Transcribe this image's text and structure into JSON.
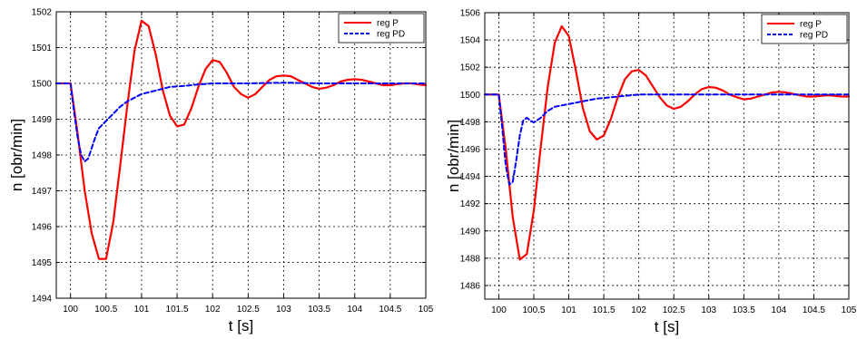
{
  "chart_data": [
    {
      "type": "line",
      "title": "",
      "xlabel": "t [s]",
      "ylabel": "n [obr/min]",
      "xlim": [
        99.8,
        105
      ],
      "ylim": [
        1494,
        1502
      ],
      "xticks": [
        100,
        100.5,
        101,
        101.5,
        102,
        102.5,
        103,
        103.5,
        104,
        104.5,
        105
      ],
      "xtick_labels": [
        "100",
        "100.5",
        "101",
        "101.5",
        "102",
        "102.5",
        "103",
        "103.5",
        "104",
        "104.5",
        "105"
      ],
      "yticks": [
        1494,
        1495,
        1496,
        1497,
        1498,
        1499,
        1500,
        1501,
        1502
      ],
      "ytick_labels": [
        "1494",
        "1495",
        "1496",
        "1497",
        "1498",
        "1499",
        "1500",
        "1501",
        "1502"
      ],
      "grid": true,
      "legend_position": "top-right",
      "series": [
        {
          "name": "reg P",
          "color": "#ff0000",
          "style": "solid",
          "x": [
            99.8,
            100.0,
            100.1,
            100.2,
            100.3,
            100.4,
            100.5,
            100.6,
            100.7,
            100.8,
            100.9,
            101.0,
            101.1,
            101.2,
            101.3,
            101.4,
            101.5,
            101.6,
            101.7,
            101.8,
            101.9,
            102.0,
            102.1,
            102.2,
            102.3,
            102.4,
            102.5,
            102.6,
            102.7,
            102.8,
            102.9,
            103.0,
            103.1,
            103.2,
            103.3,
            103.4,
            103.5,
            103.6,
            103.7,
            103.8,
            103.9,
            104.0,
            104.1,
            104.2,
            104.3,
            104.4,
            104.5,
            104.6,
            104.7,
            104.8,
            104.9,
            105.0
          ],
          "y": [
            1500,
            1500,
            1498.6,
            1497.0,
            1495.8,
            1495.1,
            1495.1,
            1496.1,
            1497.7,
            1499.4,
            1500.9,
            1501.75,
            1501.6,
            1500.8,
            1499.8,
            1499.1,
            1498.8,
            1498.85,
            1499.3,
            1499.9,
            1500.4,
            1500.65,
            1500.6,
            1500.3,
            1499.9,
            1499.7,
            1499.6,
            1499.7,
            1499.9,
            1500.1,
            1500.2,
            1500.22,
            1500.2,
            1500.1,
            1500.0,
            1499.9,
            1499.85,
            1499.88,
            1499.95,
            1500.05,
            1500.1,
            1500.12,
            1500.1,
            1500.05,
            1500.0,
            1499.95,
            1499.95,
            1499.98,
            1500.0,
            1500.0,
            1499.97,
            1499.95
          ]
        },
        {
          "name": "reg PD",
          "color": "#0000ff",
          "style": "dashed",
          "x": [
            99.8,
            100.0,
            100.05,
            100.1,
            100.15,
            100.2,
            100.25,
            100.3,
            100.35,
            100.4,
            100.45,
            100.5,
            100.6,
            100.7,
            100.8,
            100.9,
            101.0,
            101.2,
            101.4,
            101.6,
            101.8,
            102.0,
            102.2,
            102.5,
            103.0,
            103.5,
            104.0,
            104.5,
            105.0
          ],
          "y": [
            1500,
            1500,
            1499.2,
            1498.5,
            1498.0,
            1497.82,
            1497.9,
            1498.2,
            1498.5,
            1498.75,
            1498.85,
            1498.95,
            1499.15,
            1499.35,
            1499.5,
            1499.6,
            1499.7,
            1499.8,
            1499.9,
            1499.93,
            1499.97,
            1500.0,
            1500.0,
            1500.0,
            1500.02,
            1500.0,
            1500.0,
            1500.0,
            1500.0
          ]
        }
      ]
    },
    {
      "type": "line",
      "title": "",
      "xlabel": "t [s]",
      "ylabel": "n [obr/min]",
      "xlim": [
        99.8,
        105
      ],
      "ylim": [
        1485,
        1506
      ],
      "xticks": [
        100,
        100.5,
        101,
        101.5,
        102,
        102.5,
        103,
        103.5,
        104,
        104.5,
        105
      ],
      "xtick_labels": [
        "100",
        "100.5",
        "101",
        "101.5",
        "102",
        "102.5",
        "103",
        "103.5",
        "104",
        "104.5",
        "105"
      ],
      "yticks": [
        1486,
        1488,
        1490,
        1492,
        1494,
        1496,
        1498,
        1500,
        1502,
        1504,
        1506
      ],
      "ytick_labels": [
        "1486",
        "1488",
        "1490",
        "1492",
        "1494",
        "1496",
        "1498",
        "1500",
        "1502",
        "1504",
        "1506"
      ],
      "grid": true,
      "legend_position": "top-right",
      "series": [
        {
          "name": "reg P",
          "color": "#ff0000",
          "style": "solid",
          "x": [
            99.8,
            100.0,
            100.1,
            100.2,
            100.3,
            100.4,
            100.5,
            100.6,
            100.7,
            100.8,
            100.9,
            101.0,
            101.1,
            101.2,
            101.3,
            101.4,
            101.5,
            101.6,
            101.7,
            101.8,
            101.9,
            102.0,
            102.1,
            102.2,
            102.3,
            102.4,
            102.5,
            102.6,
            102.7,
            102.8,
            102.9,
            103.0,
            103.1,
            103.2,
            103.3,
            103.4,
            103.5,
            103.6,
            103.7,
            103.8,
            103.9,
            104.0,
            104.1,
            104.2,
            104.3,
            104.4,
            104.5,
            104.6,
            104.7,
            104.8,
            104.9,
            105.0
          ],
          "y": [
            1500,
            1500,
            1496.0,
            1491.0,
            1487.9,
            1488.3,
            1491.5,
            1496.2,
            1500.6,
            1503.8,
            1505.0,
            1504.3,
            1501.8,
            1499.0,
            1497.3,
            1496.7,
            1497.0,
            1498.2,
            1499.8,
            1501.1,
            1501.7,
            1501.8,
            1501.4,
            1500.6,
            1499.8,
            1499.2,
            1498.95,
            1499.1,
            1499.5,
            1500.0,
            1500.4,
            1500.55,
            1500.5,
            1500.3,
            1500.0,
            1499.8,
            1499.65,
            1499.7,
            1499.85,
            1500.0,
            1500.15,
            1500.2,
            1500.15,
            1500.05,
            1499.95,
            1499.85,
            1499.85,
            1499.9,
            1499.95,
            1499.9,
            1499.85,
            1499.85
          ]
        },
        {
          "name": "reg PD",
          "color": "#0000ff",
          "style": "dashed",
          "x": [
            99.8,
            100.0,
            100.05,
            100.1,
            100.15,
            100.2,
            100.25,
            100.3,
            100.35,
            100.4,
            100.45,
            100.5,
            100.6,
            100.7,
            100.8,
            100.9,
            101.0,
            101.2,
            101.4,
            101.6,
            101.8,
            102.0,
            102.5,
            103.0,
            103.5,
            104.0,
            104.5,
            105.0
          ],
          "y": [
            1500,
            1500,
            1497.5,
            1494.8,
            1493.4,
            1493.6,
            1495.2,
            1497.0,
            1498.1,
            1498.3,
            1498.1,
            1497.95,
            1498.3,
            1498.8,
            1499.1,
            1499.2,
            1499.3,
            1499.5,
            1499.7,
            1499.8,
            1499.9,
            1500.0,
            1500.0,
            1500.0,
            1500.0,
            1500.0,
            1500.0,
            1500.0
          ]
        }
      ]
    }
  ]
}
